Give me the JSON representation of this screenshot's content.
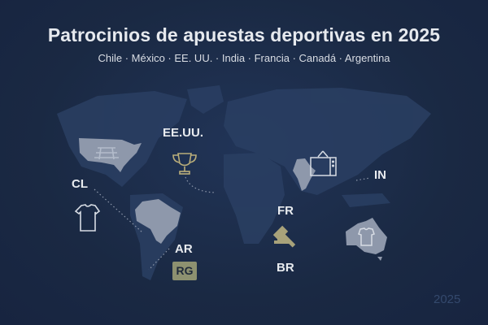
{
  "header": {
    "title": "Patrocinios de apuestas deportivas en 2025",
    "subtitle": "Chile · México · EE. UU. · India · Francia · Canadá · Argentina"
  },
  "markers": [
    {
      "label": "EE.UU.",
      "icon": "trophy-icon"
    },
    {
      "label": "CL",
      "icon": "shirt-icon"
    },
    {
      "label": "AR",
      "badge": "RG"
    },
    {
      "label": "IN",
      "icon": "tv-icon"
    },
    {
      "label": "FR",
      "icon": "gavel-icon"
    },
    {
      "label": "BR"
    }
  ],
  "watermark": "2025",
  "colors": {
    "background": "#1a2943",
    "highlight_country": "#8e98ab",
    "gold_icon": "#b9ad7a",
    "badge": "#8d9170"
  }
}
